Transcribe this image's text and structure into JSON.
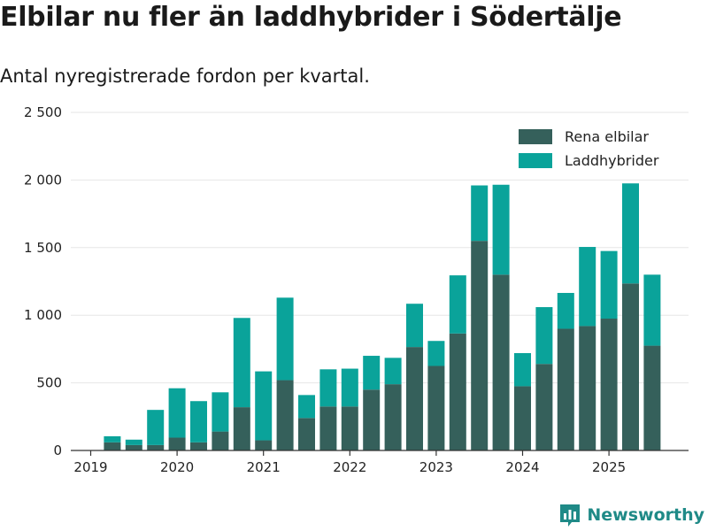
{
  "title": "Elbilar nu fler än laddhybrider i Södertälje",
  "subtitle": "Antal nyregistrerade fordon per kvartal.",
  "brand": "Newsworthy",
  "colors": {
    "series1": "#35605b",
    "series2": "#0aa39a",
    "grid": "#e6e6e6",
    "axis": "#333333",
    "brand": "#1f8a87"
  },
  "chart_data": {
    "type": "bar",
    "stacked": true,
    "title": "Elbilar nu fler än laddhybrider i Södertälje",
    "subtitle": "Antal nyregistrerade fordon per kvartal.",
    "xlabel": "",
    "ylabel": "",
    "ylim": [
      0,
      2500
    ],
    "yticks": [
      0,
      500,
      1000,
      1500,
      2000,
      2500
    ],
    "ytick_labels": [
      "0",
      "500",
      "1 000",
      "1 500",
      "2 000",
      "2 500"
    ],
    "xtick_labels": [
      "2019",
      "2020",
      "2021",
      "2022",
      "2023",
      "2024",
      "2025"
    ],
    "xtick_positions": [
      0,
      4,
      8,
      12,
      16,
      20,
      24
    ],
    "categories": [
      "2019 Q2",
      "2019 Q3",
      "2019 Q4",
      "2020 Q1",
      "2020 Q2",
      "2020 Q3",
      "2020 Q4",
      "2021 Q1",
      "2021 Q2",
      "2021 Q3",
      "2021 Q4",
      "2022 Q1",
      "2022 Q2",
      "2022 Q3",
      "2022 Q4",
      "2023 Q1",
      "2023 Q2",
      "2023 Q3",
      "2023 Q4",
      "2024 Q1",
      "2024 Q2",
      "2024 Q3",
      "2024 Q4",
      "2025 Q1",
      "2025 Q2",
      "2025 Q3"
    ],
    "legend_position": "top-right",
    "grid": true,
    "series": [
      {
        "name": "Rena elbilar",
        "color": "#35605b",
        "values": [
          60,
          40,
          40,
          95,
          60,
          140,
          320,
          75,
          520,
          240,
          325,
          325,
          450,
          490,
          765,
          625,
          865,
          1550,
          1300,
          475,
          640,
          900,
          920,
          975,
          1235,
          775
        ]
      },
      {
        "name": "Laddhybrider",
        "color": "#0aa39a",
        "values": [
          45,
          40,
          260,
          365,
          305,
          290,
          660,
          510,
          610,
          170,
          275,
          280,
          250,
          195,
          320,
          185,
          430,
          410,
          665,
          245,
          420,
          265,
          585,
          500,
          740,
          525
        ]
      }
    ]
  }
}
